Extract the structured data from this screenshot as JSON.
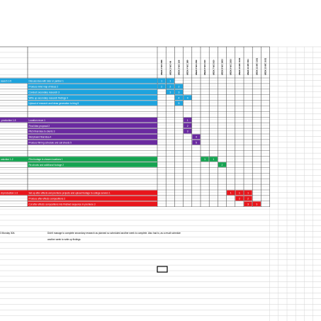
{
  "columns": [
    "WEEK 1 W/C 28/8",
    "WEEK 2 W/C 4/9",
    "WEEK 3 W/C 11/9",
    "WEEK 4 W/C 18/9",
    "WEEK 5 W/C 25/9",
    "WEEK 6 W/C 2/10",
    "WEEK 7 W/C 9/10",
    "WEEK 8 W/C 16/10",
    "WEEK 9 W/C 23/10",
    "WEEK 10 W/C 30/10",
    "WEEK 11 W/C 6/11",
    "WEEK 12 W/C 13/11",
    "WEEK 13 W/C 20/11"
  ],
  "groups": [
    {
      "label": "search 1-5",
      "color": "#1ea3dd"
    },
    {
      "label": "-production 1-5",
      "color": "#6a2aa0"
    },
    {
      "label": "oduction 1-2",
      "color": "#15a351"
    },
    {
      "label": "st-production 1-3",
      "color": "#e8161c"
    }
  ],
  "tasks": [
    {
      "label": "Discuss idea with tutor or partner 1",
      "color": "#1ea3dd",
      "cells": [
        {
          "col": 0,
          "n": "1"
        },
        {
          "col": 1,
          "n": "1"
        }
      ]
    },
    {
      "label": "Produce mind map of ideas 2",
      "color": "#1ea3dd",
      "cells": [
        {
          "col": 0,
          "n": "2"
        },
        {
          "col": 1,
          "n": "2"
        },
        {
          "col": 2,
          "n": "2"
        }
      ]
    },
    {
      "label": "Conduct secondary research 3",
      "color": "#1ea3dd",
      "cells": [
        {
          "col": 1,
          "n": "3"
        },
        {
          "col": 2,
          "n": "3"
        }
      ]
    },
    {
      "label": "Write up secondary research findings 4",
      "color": "#1ea3dd",
      "cells": [
        {
          "col": 2,
          "n": "4"
        },
        {
          "col": 3,
          "n": "4"
        }
      ]
    },
    {
      "label": "Upload of research and ideas generation to blog 5",
      "color": "#1ea3dd",
      "cells": [
        {
          "col": 2,
          "n": "5"
        }
      ]
    },
    {
      "label": "Location recce 1",
      "color": "#6a2aa0",
      "cells": [
        {
          "col": 3,
          "n": "1"
        }
      ]
    },
    {
      "label": "Final idea proposal 2",
      "color": "#6a2aa0",
      "cells": [
        {
          "col": 3,
          "n": "2"
        }
      ]
    },
    {
      "label": "Pitch final idea to clients 3",
      "color": "#6a2aa0",
      "cells": [
        {
          "col": 3,
          "n": "3"
        }
      ]
    },
    {
      "label": "Storyboard final idea 4",
      "color": "#6a2aa0",
      "cells": [
        {
          "col": 4,
          "n": "4"
        }
      ]
    },
    {
      "label": "Produce filming schedule and call sheets 5",
      "color": "#6a2aa0",
      "cells": [
        {
          "col": 4,
          "n": "5"
        }
      ]
    },
    {
      "label": "Film footage in chosen locations 1",
      "color": "#15a351",
      "cells": [
        {
          "col": 5,
          "n": "1"
        },
        {
          "col": 6,
          "n": "1"
        }
      ]
    },
    {
      "label": "Re-shoots and additional footage 2",
      "color": "#15a351",
      "cells": [
        {
          "col": 7,
          "n": "2"
        }
      ]
    },
    {
      "label": "Set up after effects and premiere projects and upload footage to college servers 1",
      "color": "#e8161c",
      "cells": [
        {
          "col": 8,
          "n": "1"
        },
        {
          "col": 9,
          "n": "1"
        },
        {
          "col": 10,
          "n": "1"
        }
      ]
    },
    {
      "label": "Produce after effects compositions 2",
      "color": "#e8161c",
      "cells": [
        {
          "col": 9,
          "n": "2"
        },
        {
          "col": 10,
          "n": "2"
        }
      ]
    },
    {
      "label": "Cut after effects compositions into finished sequence in premiere 3",
      "color": "#e8161c",
      "cells": [
        {
          "col": 10,
          "n": "3"
        },
        {
          "col": 11,
          "n": "3"
        }
      ]
    }
  ],
  "notes": {
    "left": "3 Monday 30A",
    "line1": "Didn't manage to complete secondary research as planned so scheduled another week to complete. Also had to, as a result schedule",
    "line2": "another week to write up findings"
  }
}
